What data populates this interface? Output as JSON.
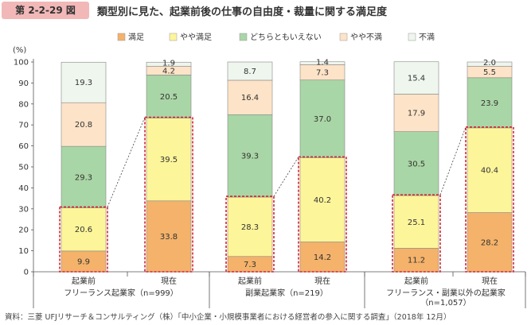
{
  "header": {
    "figure_label": "第 2-2-29 図",
    "title": "類型別に見た、起業前後の仕事の自由度・裁量に関する満足度"
  },
  "source": "資料：三菱 UFJリサーチ＆コンサルティング（株）「中小企業・小規模事業者における経営者の参入に関する調査」（2018年 12月）",
  "chart_data": {
    "type": "bar",
    "stacked": true,
    "unit_label": "(%)",
    "ylim": [
      0,
      100
    ],
    "yticks": [
      0,
      10,
      20,
      30,
      40,
      50,
      60,
      70,
      80,
      90,
      100
    ],
    "categories": [
      "起業前",
      "現在",
      "起業前",
      "現在",
      "起業前",
      "現在"
    ],
    "groups": [
      {
        "label": "フリーランス起業家（n=999）",
        "label_line2": ""
      },
      {
        "label": "副業起業家（n=219）",
        "label_line2": ""
      },
      {
        "label": "フリーランス・副業以外の起業家",
        "label_line2": "（n=1,057）"
      }
    ],
    "series": [
      {
        "name": "満足",
        "color": "#f4b26a",
        "values": [
          9.9,
          33.8,
          7.3,
          14.2,
          11.2,
          28.2
        ]
      },
      {
        "name": "やや満足",
        "color": "#fdf59a",
        "values": [
          20.6,
          39.5,
          28.3,
          40.2,
          25.1,
          40.4
        ]
      },
      {
        "name": "どちらともいえない",
        "color": "#a9d6a6",
        "values": [
          29.3,
          20.5,
          39.3,
          37.0,
          30.5,
          23.9
        ]
      },
      {
        "name": "やや不満",
        "color": "#fde3c7",
        "values": [
          20.8,
          4.2,
          16.4,
          7.3,
          17.9,
          5.5
        ]
      },
      {
        "name": "不満",
        "color": "#eef6ee",
        "values": [
          19.3,
          1.9,
          8.7,
          1.4,
          15.4,
          2.0
        ]
      }
    ],
    "grid": false,
    "legend_position": "top",
    "highlight_color": "#d9232d"
  }
}
